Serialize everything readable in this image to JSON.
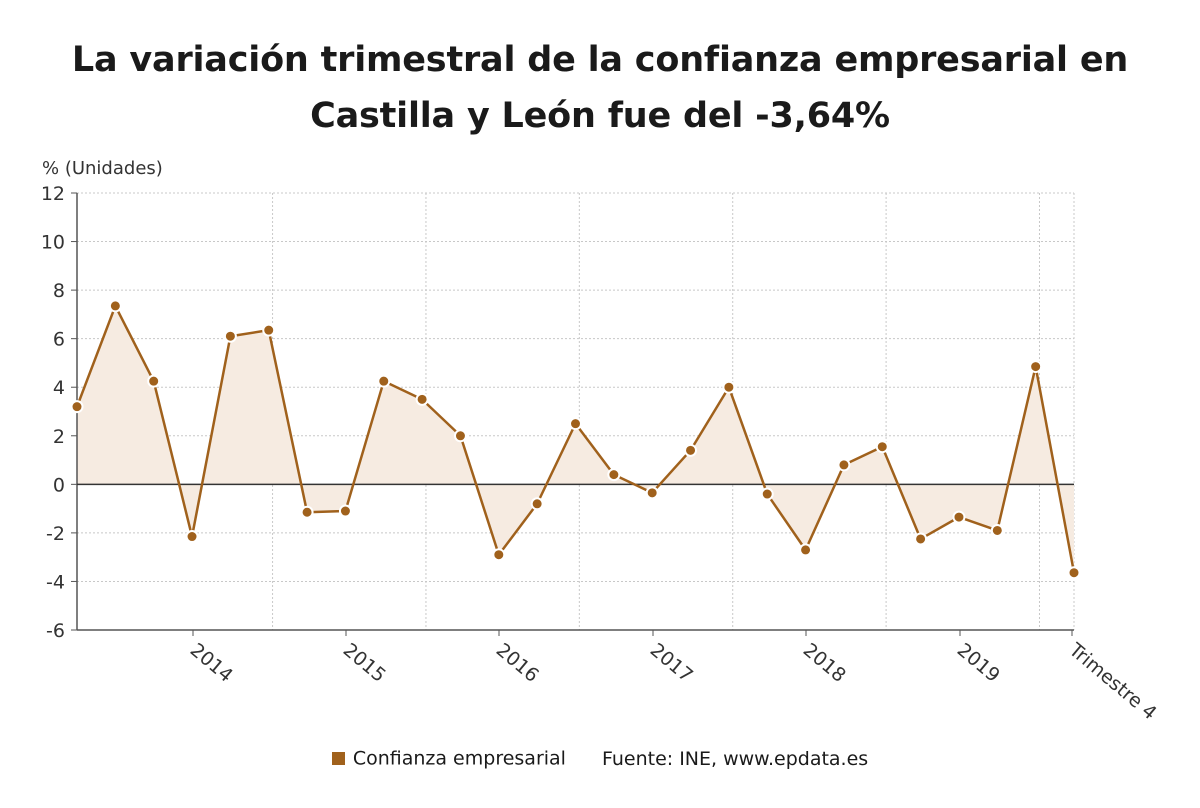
{
  "colors": {
    "series": "#a0611c",
    "fill": "#f6ebe1",
    "grid": "#c8c8c8",
    "zero_line": "#333333",
    "axis": "#555555"
  },
  "chart_data": {
    "type": "line",
    "title": "La variación trimestral de la confianza empresarial en Castilla y León fue del -3,64%",
    "ylabel": "% (Unidades)",
    "xlabel": "",
    "ylim": [
      -6,
      12
    ],
    "yticks": [
      -6,
      -4,
      -2,
      0,
      2,
      4,
      6,
      8,
      10,
      12
    ],
    "xtick_labels": [
      "2014",
      "2015",
      "2016",
      "2017",
      "2018",
      "2019",
      "Trimestre 4"
    ],
    "area_fill": true,
    "grid": true,
    "legend_position": "bottom",
    "series": [
      {
        "name": "Confianza empresarial",
        "values": [
          3.2,
          7.35,
          4.25,
          -2.15,
          6.1,
          6.35,
          -1.15,
          -1.1,
          4.25,
          3.5,
          2.0,
          -2.9,
          -0.8,
          2.5,
          0.4,
          -0.35,
          1.4,
          4.0,
          -0.4,
          -2.7,
          0.8,
          1.55,
          -2.25,
          -1.35,
          -1.9,
          4.85,
          -3.64
        ]
      }
    ]
  },
  "footer": {
    "legend_label": "Confianza empresarial",
    "source": "Fuente: INE, www.epdata.es"
  }
}
